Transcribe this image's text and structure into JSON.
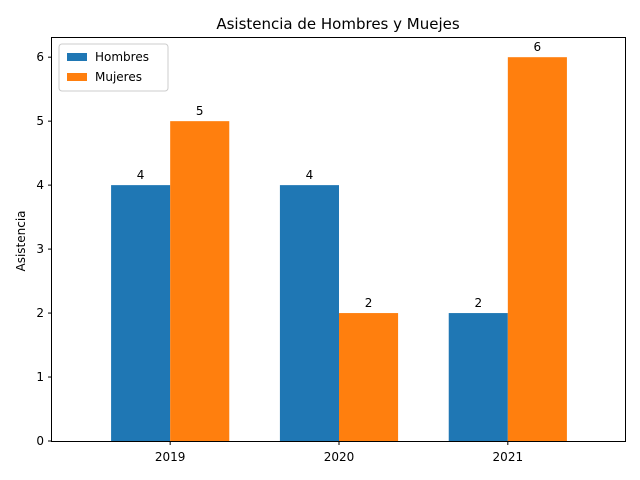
{
  "chart_data": {
    "type": "bar",
    "title": "Asistencia de Hombres y Muejes",
    "xlabel": "",
    "ylabel": "Asistencia",
    "categories": [
      "2019",
      "2020",
      "2021"
    ],
    "series": [
      {
        "name": "Hombres",
        "values": [
          4,
          4,
          2
        ],
        "color": "#1f77b4"
      },
      {
        "name": "Mujeres",
        "values": [
          5,
          2,
          6
        ],
        "color": "#ff7f0e"
      }
    ],
    "ylim": [
      0,
      6.3
    ],
    "yticks": [
      0,
      1,
      2,
      3,
      4,
      5,
      6
    ],
    "grid": false,
    "legend_position": "top-left",
    "data_labels": true
  }
}
